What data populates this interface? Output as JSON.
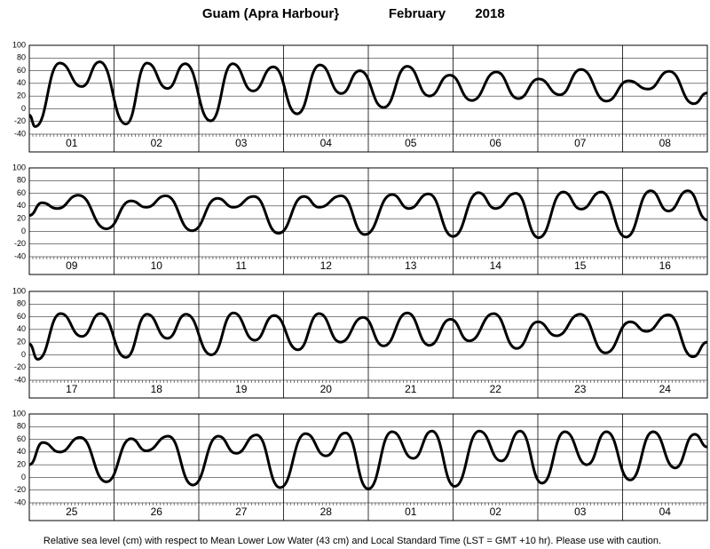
{
  "header": {
    "title": "Guam (Apra Harbour}",
    "month": "February",
    "year": "2018"
  },
  "footnote": "Relative sea level (cm) with respect to Mean Lower Low Water (43 cm) and Local Standard Time (LST = GMT +10 hr). Please use with caution.",
  "chart_data": [
    {
      "type": "line",
      "color": "#000000",
      "xlim": [
        0,
        8
      ],
      "ylim": [
        -40,
        100
      ],
      "yticks": [
        -40,
        -20,
        0,
        20,
        40,
        60,
        80,
        100
      ],
      "grid": true,
      "categories": [
        "01",
        "02",
        "03",
        "04",
        "05",
        "06",
        "07",
        "08"
      ],
      "x": [
        0,
        0.07,
        0.36,
        0.62,
        0.83,
        1.14,
        1.39,
        1.63,
        1.84,
        2.14,
        2.4,
        2.64,
        2.88,
        3.16,
        3.43,
        3.68,
        3.9,
        4.18,
        4.46,
        4.72,
        4.96,
        5.22,
        5.51,
        5.77,
        6.01,
        6.26,
        6.51,
        6.81,
        7.07,
        7.3,
        7.55,
        7.84,
        8
      ],
      "values": [
        -10,
        -28,
        72,
        35,
        74,
        -24,
        72,
        32,
        71,
        -19,
        71,
        28,
        66,
        -8,
        69,
        24,
        60,
        2,
        67,
        20,
        53,
        13,
        58,
        16,
        47,
        22,
        62,
        12,
        44,
        31,
        59,
        8,
        25
      ]
    },
    {
      "type": "line",
      "color": "#000000",
      "xlim": [
        0,
        8
      ],
      "ylim": [
        -40,
        100
      ],
      "yticks": [
        -40,
        -20,
        0,
        20,
        40,
        60,
        80,
        100
      ],
      "grid": true,
      "categories": [
        "09",
        "10",
        "11",
        "12",
        "13",
        "14",
        "15",
        "16"
      ],
      "x": [
        0,
        0.15,
        0.33,
        0.58,
        0.91,
        1.2,
        1.38,
        1.61,
        1.92,
        2.22,
        2.41,
        2.65,
        2.94,
        3.24,
        3.42,
        3.68,
        3.96,
        4.28,
        4.48,
        4.71,
        5.0,
        5.3,
        5.5,
        5.74,
        6.01,
        6.3,
        6.51,
        6.75,
        7.04,
        7.33,
        7.54,
        7.77,
        8
      ],
      "values": [
        25,
        45,
        36,
        57,
        4,
        48,
        38,
        56,
        1,
        52,
        38,
        55,
        -3,
        55,
        38,
        56,
        -5,
        58,
        36,
        59,
        -8,
        61,
        36,
        60,
        -10,
        62,
        35,
        62,
        -9,
        64,
        32,
        64,
        18
      ]
    },
    {
      "type": "line",
      "color": "#000000",
      "xlim": [
        0,
        8
      ],
      "ylim": [
        -40,
        100
      ],
      "yticks": [
        -40,
        -20,
        0,
        20,
        40,
        60,
        80,
        100
      ],
      "grid": true,
      "categories": [
        "17",
        "18",
        "19",
        "20",
        "21",
        "22",
        "23",
        "24"
      ],
      "x": [
        0,
        0.1,
        0.37,
        0.62,
        0.84,
        1.14,
        1.39,
        1.63,
        1.85,
        2.15,
        2.41,
        2.66,
        2.89,
        3.17,
        3.42,
        3.67,
        3.94,
        4.18,
        4.46,
        4.72,
        4.97,
        5.19,
        5.48,
        5.75,
        6.0,
        6.22,
        6.5,
        6.8,
        7.09,
        7.28,
        7.54,
        7.83,
        8
      ],
      "values": [
        17,
        -7,
        65,
        29,
        65,
        -4,
        64,
        26,
        64,
        0,
        66,
        23,
        62,
        8,
        65,
        20,
        59,
        14,
        66,
        15,
        56,
        22,
        65,
        10,
        52,
        30,
        64,
        3,
        52,
        37,
        63,
        -3,
        20
      ]
    },
    {
      "type": "line",
      "color": "#000000",
      "xlim": [
        0,
        8
      ],
      "ylim": [
        -40,
        100
      ],
      "yticks": [
        -40,
        -20,
        0,
        20,
        40,
        60,
        80,
        100
      ],
      "grid": true,
      "categories": [
        "25",
        "26",
        "27",
        "28",
        "01",
        "02",
        "03",
        "04"
      ],
      "x": [
        0,
        0.16,
        0.36,
        0.6,
        0.91,
        1.2,
        1.38,
        1.64,
        1.93,
        2.23,
        2.44,
        2.68,
        2.96,
        3.26,
        3.5,
        3.73,
        4.0,
        4.28,
        4.53,
        4.75,
        5.02,
        5.31,
        5.57,
        5.79,
        6.05,
        6.32,
        6.58,
        6.81,
        7.09,
        7.36,
        7.62,
        7.85,
        8
      ],
      "values": [
        20,
        55,
        40,
        63,
        -7,
        61,
        42,
        65,
        -12,
        65,
        38,
        67,
        -16,
        69,
        34,
        70,
        -18,
        72,
        30,
        73,
        -14,
        73,
        26,
        73,
        -9,
        72,
        20,
        72,
        -4,
        72,
        15,
        68,
        48
      ]
    }
  ]
}
